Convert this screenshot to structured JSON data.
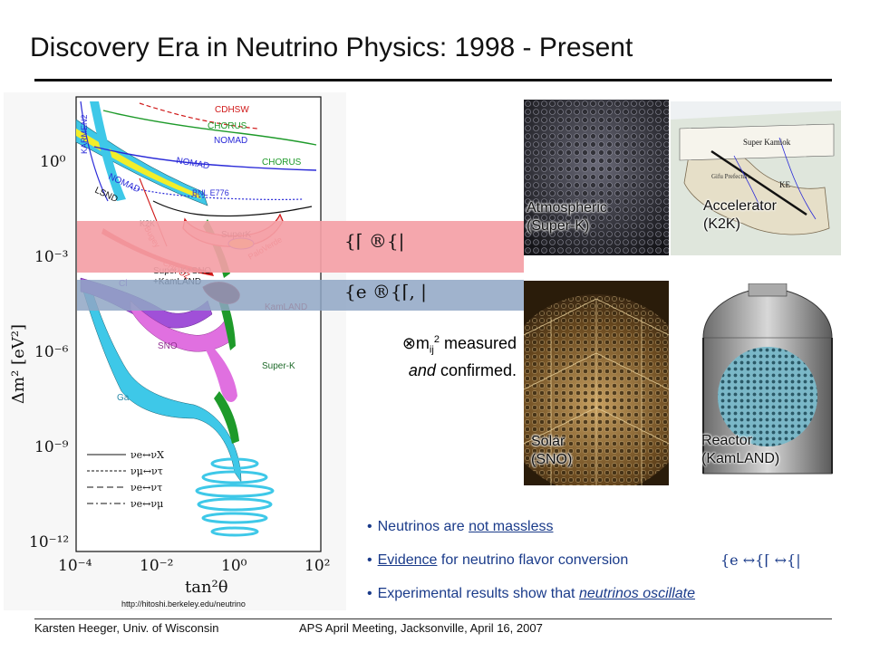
{
  "slide": {
    "title": "Discovery Era in Neutrino Physics: 1998 - Present",
    "footer_left": "Karsten Heeger, Univ. of Wisconsin",
    "footer_center": "APS April Meeting, Jacksonville, April 16, 2007"
  },
  "plot": {
    "y_axis_label": "Δm² [eV²]",
    "x_axis_label": "tan²θ",
    "y_ticks": [
      "10⁰",
      "10⁻³",
      "10⁻⁶",
      "10⁻⁹",
      "10⁻¹²"
    ],
    "x_ticks": [
      "10⁻⁴",
      "10⁻²",
      "10⁰",
      "10²"
    ],
    "region_labels": [
      "CDHSW",
      "CHORUS",
      "NOMAD",
      "NOMAD",
      "CHORUS",
      "KARMEN2",
      "LSND",
      "Bugey",
      "BNL E776",
      "K2K",
      "SuperK",
      "CHOOZ",
      "PaloVerde",
      "Super-K+SNO +KamLAND",
      "Cl",
      "KamLAND",
      "SNO",
      "Super-K",
      "Ga"
    ],
    "legend": [
      "νe↔νX",
      "νμ↔ντ",
      "νe↔ντ",
      "νe↔νμ"
    ],
    "url": "http://hitoshi.berkeley.edu/neutrino",
    "colors": {
      "cyan": "#3ec8e8",
      "yellow": "#f2ee2a",
      "green": "#1e9a2a",
      "magenta": "#e070e0",
      "purple": "#a050d8",
      "red_contour": "#d01818",
      "blue_contour": "#2a2ad8"
    }
  },
  "bands": {
    "atmospheric_symbols": "{⌈ ®{|",
    "solar_symbols": "{e ®{⌈, |",
    "measured_line1": "measured",
    "measured_sub": "ij",
    "measured_prefix": "⊗m",
    "measured_line2_italic": "and",
    "measured_line2_rest": " confirmed."
  },
  "photos": [
    {
      "label_line1": "Atmospheric",
      "label_line2": "(Super-K)"
    },
    {
      "label_line1": "Accelerator",
      "label_line2": "(K2K)"
    },
    {
      "label_line1": "Solar",
      "label_line2": "(SNO)"
    },
    {
      "label_line1": "Reactor",
      "label_line2": "(KamLAND)"
    }
  ],
  "map_labels": [
    "Super Kamiok",
    "Gifu Prefecture",
    "KE"
  ],
  "bullets": {
    "b1_pre": "Neutrinos are ",
    "b1_link": "not massless",
    "b2_link": "Evidence",
    "b2_post": " for neutrino flavor conversion",
    "b2_symbols": "{e ↔{⌈ ↔{|",
    "b3_pre": "Experimental results show that ",
    "b3_link": "neutrinos oscillate"
  }
}
